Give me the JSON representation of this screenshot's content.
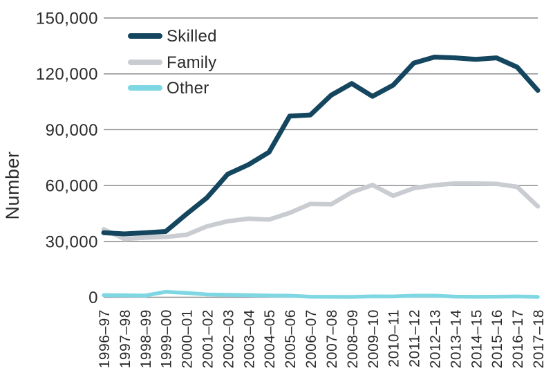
{
  "chart_data": {
    "type": "line",
    "title": "",
    "xlabel": "",
    "ylabel": "Number",
    "categories": [
      "1996–97",
      "1997–98",
      "1998–99",
      "1999–00",
      "2000–01",
      "2001–02",
      "2002–03",
      "2003–04",
      "2004–05",
      "2005–06",
      "2006–07",
      "2007–08",
      "2008–09",
      "2009–10",
      "2010–11",
      "2011–12",
      "2012–13",
      "2013–14",
      "2014–15",
      "2015–16",
      "2016–17",
      "2017–18"
    ],
    "series": [
      {
        "name": "Skilled",
        "color": "#15465f",
        "values": [
          34700,
          34000,
          34600,
          35300,
          44600,
          53500,
          66100,
          71200,
          77900,
          97300,
          97900,
          108500,
          114800,
          107900,
          113900,
          125800,
          129000,
          128600,
          127800,
          128600,
          123600,
          111100
        ]
      },
      {
        "name": "Family",
        "color": "#c9cdd2",
        "values": [
          36500,
          31300,
          32000,
          32400,
          33500,
          38100,
          40800,
          42200,
          41700,
          45300,
          50100,
          49900,
          56400,
          60300,
          54500,
          58600,
          60200,
          61100,
          61100,
          60900,
          59300,
          48800
        ]
      },
      {
        "name": "Other",
        "color": "#7ed7e2",
        "values": [
          1100,
          1000,
          900,
          2900,
          2300,
          1500,
          1300,
          1100,
          900,
          870,
          250,
          220,
          180,
          500,
          420,
          860,
          840,
          340,
          240,
          310,
          420,
          200
        ]
      }
    ],
    "y_axis": {
      "min": 0,
      "max": 150000,
      "tick_labels": [
        "150,000",
        "120,000",
        "90,000",
        "60,000",
        "30,000",
        "0"
      ],
      "tick_values": [
        150000,
        120000,
        90000,
        60000,
        30000,
        0
      ]
    },
    "legend": {
      "position": "top-left",
      "entries": [
        "Skilled",
        "Family",
        "Other"
      ]
    },
    "grid": "horizontal-only",
    "colors": {
      "text": "#2b2b2b",
      "gridline": "#898b8d",
      "background": "#ffffff"
    }
  }
}
